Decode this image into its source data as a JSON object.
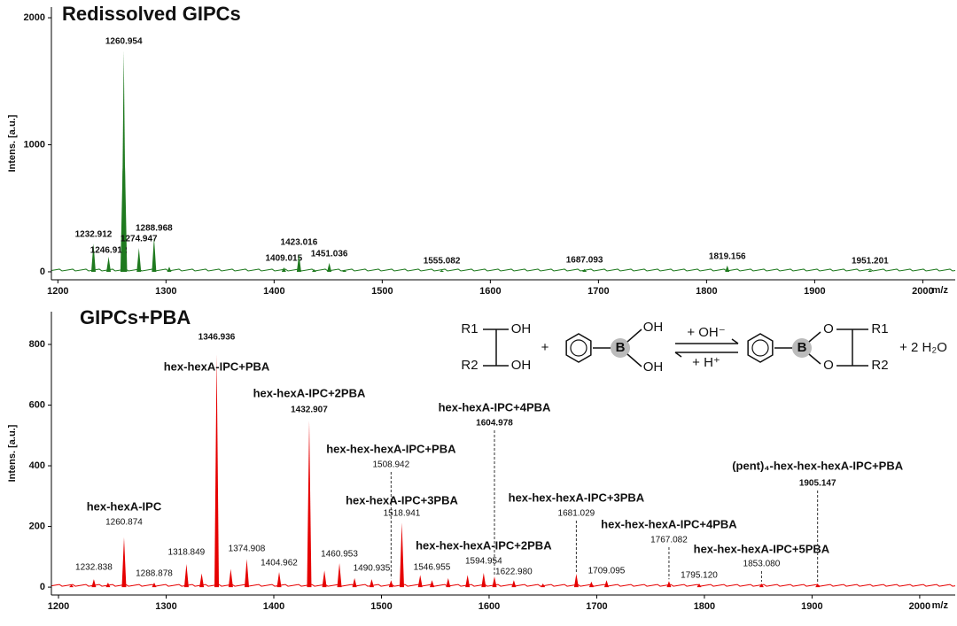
{
  "chart_data": [
    {
      "type": "spectrum",
      "title": "Redissolved GIPCs",
      "ylabel": "Intens. [a.u.]",
      "xlabel": "m/z",
      "color": "#1f7a1f",
      "xlim": [
        1194,
        2030
      ],
      "xticks": [
        1200,
        1300,
        1400,
        1500,
        1600,
        1700,
        1800,
        1900,
        2000
      ],
      "ylim": [
        -63,
        2084
      ],
      "yticks": [
        0,
        1000,
        2000
      ],
      "x": [
        1232.912,
        1246.912,
        1260.954,
        1274.947,
        1288.968,
        1409.015,
        1423.016,
        1451.036,
        1555.082,
        1687.093,
        1819.156,
        1951.201
      ],
      "x_labels": [
        "1232.912",
        "1246.912",
        "1260.954",
        "1274.947",
        "1288.968",
        "1409.015",
        "1423.016",
        "1451.036",
        "1555.082",
        "1687.093",
        "1819.156",
        "1951.201"
      ],
      "values": [
        223,
        118,
        1742,
        188,
        272,
        35,
        139,
        70,
        14,
        22,
        49,
        14
      ],
      "minor_peaks": {
        "x": [
          1259.9,
          1262.0,
          1303.0,
          1437.0,
          1465.0
        ],
        "values": [
          820,
          860,
          40,
          20,
          15
        ]
      }
    },
    {
      "type": "spectrum",
      "title": "GIPCs+PBA",
      "ylabel": "Intens. [a.u.]",
      "xlabel": "m/z",
      "color": "#e60000",
      "xlim": [
        1193.4,
        2033
      ],
      "xticks": [
        1200,
        1300,
        1400,
        1500,
        1600,
        1700,
        1800,
        1900,
        2000
      ],
      "ylim": [
        -26,
        908
      ],
      "yticks": [
        0,
        200,
        400,
        600,
        800
      ],
      "x": [
        1232.838,
        1260.874,
        1288.878,
        1318.849,
        1346.936,
        1374.908,
        1404.962,
        1432.907,
        1460.953,
        1490.935,
        1508.942,
        1518.941,
        1546.955,
        1594.954,
        1604.978,
        1622.98,
        1681.029,
        1709.095,
        1767.082,
        1795.12,
        1853.08,
        1905.147
      ],
      "x_labels": [
        "1232.838",
        "1260.874",
        "1288.878",
        "1318.849",
        "1346.936",
        "1374.908",
        "1404.962",
        "1432.907",
        "1460.953",
        "1490.935",
        "1508.942",
        "1518.941",
        "1546.955",
        "1594.954",
        "1604.978",
        "1622.980",
        "1681.029",
        "1709.095",
        "1767.082",
        "1795.120",
        "1853.080",
        "1905.147"
      ],
      "values": [
        26,
        164,
        15,
        76,
        768,
        93,
        50,
        549,
        79,
        26,
        23,
        213,
        23,
        47,
        35,
        23,
        44,
        23,
        20,
        12,
        12,
        12
      ],
      "names": [
        null,
        "hex-hexA-IPC",
        null,
        null,
        "hex-hexA-IPC+PBA",
        null,
        null,
        "hex-hexA-IPC+2PBA",
        null,
        null,
        "hex-hex-hexA-IPC+PBA",
        "hex-hexA-IPC+3PBA",
        null,
        "hex-hex-hexA-IPC+2PBA",
        "hex-hexA-IPC+4PBA",
        null,
        "hex-hex-hexA-IPC+3PBA",
        null,
        "hex-hex-hexA-IPC+4PBA",
        null,
        "hex-hex-hexA-IPC+5PBA",
        "(pent)₄-hex-hex-hexA-IPC+PBA"
      ],
      "minor_peaks": {
        "x": [
          1212,
          1246,
          1333,
          1360,
          1447,
          1475,
          1536,
          1562,
          1580,
          1650,
          1695
        ],
        "values": [
          8,
          15,
          45,
          60,
          55,
          30,
          40,
          30,
          40,
          12,
          18
        ]
      },
      "scheme": [
        "R1",
        "OH",
        "R2",
        "OH",
        "+",
        "B",
        "OH",
        "OH",
        "+ OH⁻",
        "+ H⁺",
        "B",
        "O",
        "O",
        "R1",
        "R2",
        "+ 2 H₂O"
      ]
    }
  ]
}
